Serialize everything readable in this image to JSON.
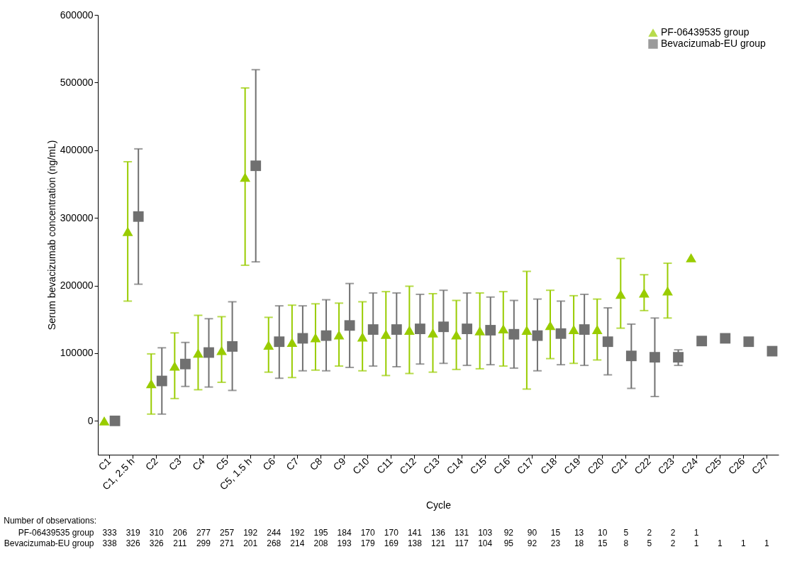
{
  "chart_data": {
    "type": "scatter",
    "xlabel": "Cycle",
    "ylabel": "Serum bevacizumab concentration (ng/mL)",
    "categories": [
      "C1",
      "C1, 2.5 h",
      "C2",
      "C3",
      "C4",
      "C5",
      "C5, 1.5 h",
      "C6",
      "C7",
      "C8",
      "C9",
      "C10",
      "C11",
      "C12",
      "C13",
      "C14",
      "C15",
      "C16",
      "C17",
      "C18",
      "C19",
      "C20",
      "C21",
      "C22",
      "C23",
      "C24",
      "C25",
      "C26",
      "C27"
    ],
    "series": [
      {
        "name": "PF-06439535 group",
        "color": "#99cc00",
        "marker": "triangle",
        "values": [
          0,
          280000,
          55000,
          81000,
          100000,
          104000,
          360000,
          112000,
          116000,
          123000,
          127000,
          124000,
          128000,
          134000,
          130000,
          127000,
          133000,
          136000,
          134000,
          141000,
          135000,
          135000,
          187000,
          189000,
          192000,
          241000,
          null,
          null,
          null
        ],
        "errors": [
          null,
          [
            177000,
            383000
          ],
          [
            10000,
            99000
          ],
          [
            33000,
            130000
          ],
          [
            46000,
            156000
          ],
          [
            57000,
            154000
          ],
          [
            230000,
            492000
          ],
          [
            72000,
            153000
          ],
          [
            64000,
            171000
          ],
          [
            75000,
            173000
          ],
          [
            81000,
            174000
          ],
          [
            74000,
            176000
          ],
          [
            67000,
            191000
          ],
          [
            70000,
            199000
          ],
          [
            72000,
            188000
          ],
          [
            76000,
            178000
          ],
          [
            77000,
            189000
          ],
          [
            81000,
            191000
          ],
          [
            47000,
            221000
          ],
          [
            92000,
            193000
          ],
          [
            85000,
            185000
          ],
          [
            90000,
            180000
          ],
          [
            137000,
            240000
          ],
          [
            163000,
            216000
          ],
          [
            152000,
            233000
          ],
          null,
          null,
          null,
          null
        ]
      },
      {
        "name": "Bevacizumab-EU group",
        "color": "#707070",
        "marker": "square",
        "values": [
          0,
          302000,
          59000,
          84000,
          101000,
          110000,
          377000,
          117000,
          122000,
          126000,
          141000,
          135000,
          135000,
          136000,
          139000,
          136000,
          134000,
          128000,
          126000,
          129000,
          135000,
          117000,
          96000,
          94000,
          94000,
          118000,
          122000,
          117000,
          103000
        ],
        "errors": [
          null,
          [
            202000,
            402000
          ],
          [
            10000,
            108000
          ],
          [
            51000,
            116000
          ],
          [
            50000,
            151000
          ],
          [
            45000,
            176000
          ],
          [
            235000,
            519000
          ],
          [
            63000,
            170000
          ],
          [
            74000,
            170000
          ],
          [
            74000,
            179000
          ],
          [
            79000,
            203000
          ],
          [
            81000,
            189000
          ],
          [
            80000,
            189000
          ],
          [
            84000,
            187000
          ],
          [
            85000,
            193000
          ],
          [
            82000,
            189000
          ],
          [
            83000,
            183000
          ],
          [
            78000,
            178000
          ],
          [
            74000,
            180000
          ],
          [
            83000,
            177000
          ],
          [
            82000,
            187000
          ],
          [
            68000,
            167000
          ],
          [
            48000,
            143000
          ],
          [
            36000,
            152000
          ],
          [
            82000,
            105000
          ],
          null,
          null,
          null,
          null
        ]
      }
    ],
    "ylim": [
      -50000,
      600000
    ],
    "yticks": [
      0,
      100000,
      200000,
      300000,
      400000,
      500000,
      600000
    ],
    "grid": false,
    "legend": "top right",
    "annotations": [
      "Number of observations:",
      "333 319 310 206 277 257 192 244 192 195 184 170 170 141 136 131 103 92 90 15 13 10 5 2 2 1",
      "338 326 326 211 299 271 201 268 214 208 193 179 169 138 121 117 104 95 92 23 18 15 8 5 2 1 1 1 1"
    ]
  }
}
